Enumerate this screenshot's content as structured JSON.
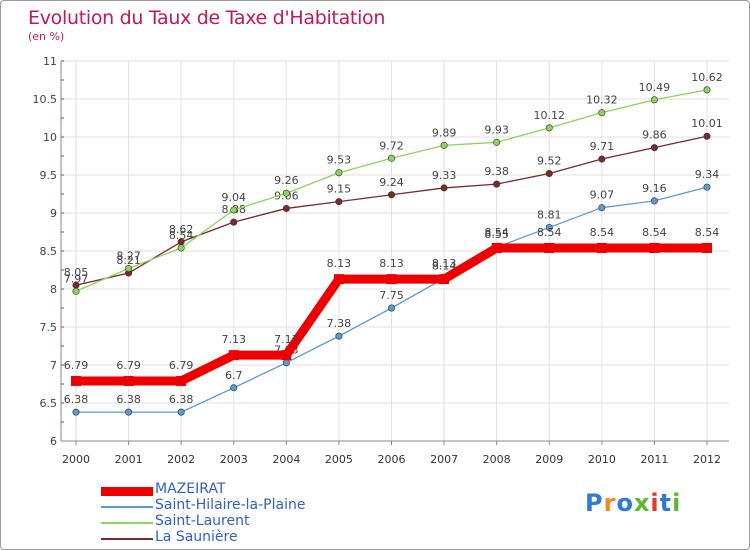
{
  "title": "Evolution du Taux de Taxe d'Habitation",
  "subtitle": "(en %)",
  "logo": {
    "text": "Proxiti",
    "letter_colors": [
      "#2e7bd4",
      "#f08a1c",
      "#2e7bd4",
      "#5cb82e",
      "#e03a2e",
      "#2e7bd4",
      "#5cb82e"
    ]
  },
  "chart_data": {
    "type": "line",
    "title": "Evolution du Taux de Taxe d'Habitation",
    "ylabel": "(en %)",
    "xlabel": "",
    "x": [
      "2000",
      "2001",
      "2002",
      "2003",
      "2004",
      "2005",
      "2006",
      "2007",
      "2008",
      "2009",
      "2010",
      "2011",
      "2012"
    ],
    "ylim": [
      6,
      11
    ],
    "yticks": [
      6,
      6.5,
      7,
      7.5,
      8,
      8.5,
      9,
      9.5,
      10,
      10.5,
      11
    ],
    "ytick_labels": [
      "6",
      "6.5",
      "7",
      "7.5",
      "8",
      "8.5",
      "9",
      "9.5",
      "10",
      "10.5",
      "11"
    ],
    "grid": true,
    "legend_position": "bottom-left",
    "series": [
      {
        "name": "MAZEIRAT",
        "color": "#ee0000",
        "values": [
          6.79,
          6.79,
          6.79,
          7.13,
          7.13,
          8.13,
          8.13,
          8.13,
          8.54,
          8.54,
          8.54,
          8.54,
          8.54
        ],
        "labels": [
          "6.79",
          "6.79",
          "6.79",
          "7.13",
          "7.13",
          "8.13",
          "8.13",
          "8.13",
          "8.54",
          "8.54",
          "8.54",
          "8.54",
          "8.54"
        ]
      },
      {
        "name": "Saint-Hilaire-la-Plaine",
        "color": "#5b9bd5",
        "values": [
          6.38,
          6.38,
          6.38,
          6.7,
          7.03,
          7.38,
          7.75,
          8.14,
          8.55,
          8.81,
          9.07,
          9.16,
          9.34
        ],
        "labels": [
          "6.38",
          "6.38",
          "6.38",
          "6.7",
          "7.03",
          "7.38",
          "7.75",
          "8.14",
          "8.55",
          "8.81",
          "9.07",
          "9.16",
          "9.34"
        ]
      },
      {
        "name": "Saint-Laurent",
        "color": "#8fd45a",
        "values": [
          7.97,
          8.27,
          8.54,
          9.04,
          9.26,
          9.53,
          9.72,
          9.89,
          9.93,
          10.12,
          10.32,
          10.49,
          10.62
        ],
        "labels": [
          "7.97",
          "8.27",
          "8.54",
          "9.04",
          "9.26",
          "9.53",
          "9.72",
          "9.89",
          "9.93",
          "10.12",
          "10.32",
          "10.49",
          "10.62"
        ]
      },
      {
        "name": "La Saunière",
        "color": "#7a2a2a",
        "values": [
          8.05,
          8.21,
          8.62,
          8.88,
          9.06,
          9.15,
          9.24,
          9.33,
          9.38,
          9.52,
          9.71,
          9.86,
          10.01
        ],
        "labels": [
          "8.05",
          "8.21",
          "8.62",
          "8.88",
          "9.06",
          "9.15",
          "9.24",
          "9.33",
          "9.38",
          "9.52",
          "9.71",
          "9.86",
          "10.01"
        ]
      }
    ]
  }
}
